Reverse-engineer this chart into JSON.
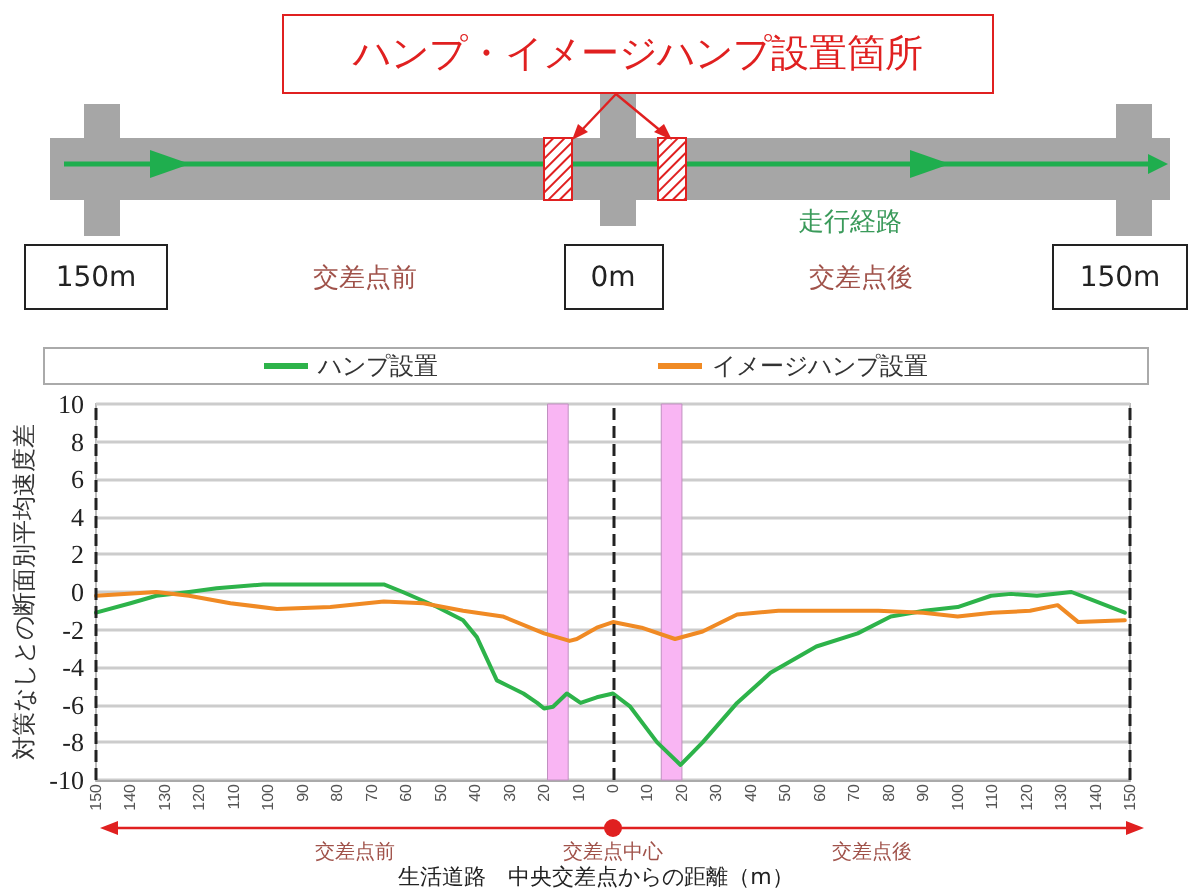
{
  "chart_data": {
    "type": "line",
    "xlabel": "生活道路　中央交差点からの距離（m）",
    "ylabel": "対策なしとの断面別平均速度差",
    "annotations": [
      "ハンプ・イメージハンプ設置箇所",
      "走行経路",
      "150m",
      "0m",
      "150m",
      "交差点前",
      "交差点後",
      "交差点前",
      "交差点中心",
      "交差点後"
    ],
    "xlim": [
      -150,
      150
    ],
    "xticks": [
      {
        "value": -150,
        "label": "150"
      },
      {
        "value": -140,
        "label": "140"
      },
      {
        "value": -130,
        "label": "130"
      },
      {
        "value": -120,
        "label": "120"
      },
      {
        "value": -110,
        "label": "110"
      },
      {
        "value": -100,
        "label": "100"
      },
      {
        "value": -90,
        "label": "90"
      },
      {
        "value": -80,
        "label": "80"
      },
      {
        "value": -70,
        "label": "70"
      },
      {
        "value": -60,
        "label": "60"
      },
      {
        "value": -50,
        "label": "50"
      },
      {
        "value": -40,
        "label": "40"
      },
      {
        "value": -30,
        "label": "30"
      },
      {
        "value": -20,
        "label": "20"
      },
      {
        "value": -10,
        "label": "10"
      },
      0,
      10,
      20,
      30,
      40,
      50,
      60,
      70,
      80,
      90,
      100,
      110,
      120,
      130,
      140,
      150
    ],
    "ylim": [
      -10,
      10
    ],
    "yticks": [
      -10,
      -8,
      -6,
      -4,
      -2,
      0,
      2,
      4,
      6,
      8,
      10
    ],
    "grid": "y",
    "legend": "top",
    "marker": "none",
    "line_style": "solid",
    "series": [
      {
        "name": "ハンプ設置",
        "color": "#2db34a",
        "x": [
          -150,
          -140,
          -132.5,
          -123,
          -115,
          -101.5,
          -82,
          -66.5,
          -61,
          -51,
          -43.5,
          -39.5,
          -33.7,
          -26,
          -22,
          -20,
          -17.4,
          -13.4,
          -9.4,
          -4.7,
          0,
          5,
          12.8,
          19.6,
          26,
          36,
          45.7,
          59,
          71,
          80.6,
          90.3,
          100,
          109.7,
          115.5,
          123,
          133,
          138.8,
          148.5
        ],
        "values": [
          -1.1,
          -0.6,
          -0.2,
          0,
          0.2,
          0.4,
          0.4,
          0.4,
          0,
          -0.8,
          -1.5,
          -2.4,
          -4.7,
          -5.4,
          -5.9,
          -6.2,
          -6.1,
          -5.4,
          -5.9,
          -5.6,
          -5.4,
          -6.1,
          -8.0,
          -9.2,
          -8.0,
          -5.9,
          -4.3,
          -2.9,
          -2.2,
          -1.3,
          -1.0,
          -0.8,
          -0.2,
          -0.1,
          -0.2,
          0,
          -0.4,
          -1.1
        ]
      },
      {
        "name": "イメージハンプ設置",
        "color": "#f08a24",
        "x": [
          -150,
          -132.5,
          -123,
          -111,
          -97.5,
          -82,
          -66.5,
          -55,
          -43.5,
          -32,
          -20,
          -12.6,
          -10.5,
          -4.7,
          0,
          8.3,
          18,
          26,
          36,
          48,
          67,
          77,
          90,
          100,
          110,
          121,
          129,
          135,
          148.5
        ],
        "values": [
          -0.2,
          0,
          -0.2,
          -0.6,
          -0.9,
          -0.8,
          -0.5,
          -0.6,
          -1.0,
          -1.3,
          -2.2,
          -2.6,
          -2.5,
          -1.9,
          -1.6,
          -1.9,
          -2.5,
          -2.1,
          -1.2,
          -1.0,
          -1.0,
          -1.0,
          -1.1,
          -1.3,
          -1.1,
          -1.0,
          -0.7,
          -1.6,
          -1.5
        ]
      }
    ],
    "bands": [
      {
        "axis": "x",
        "from": -19,
        "to": -13,
        "color": "#f9b5f3"
      },
      {
        "axis": "x",
        "from": 14,
        "to": 20,
        "color": "#f9b5f3"
      }
    ],
    "ref_lines": [
      {
        "axis": "x",
        "value": -150,
        "color": "#222222",
        "line_style": "dashed"
      },
      {
        "axis": "x",
        "value": 0,
        "color": "#222222",
        "line_style": "dashed"
      },
      {
        "axis": "x",
        "value": 150,
        "color": "#222222",
        "line_style": "dashed"
      }
    ]
  }
}
